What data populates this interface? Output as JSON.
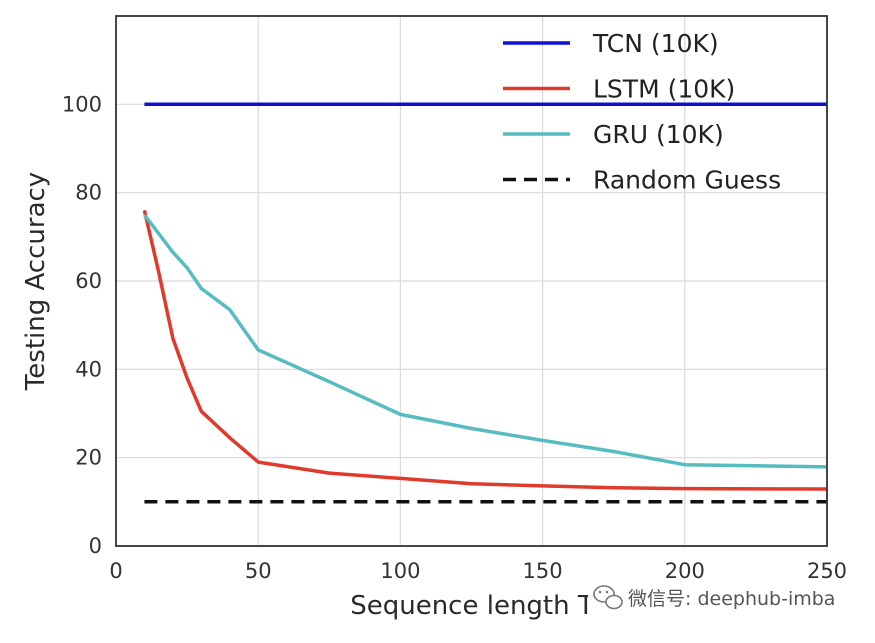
{
  "chart_data": {
    "type": "line",
    "title": "",
    "xlabel": "Sequence length T",
    "ylabel": "Testing Accuracy",
    "xlim": [
      0,
      250
    ],
    "ylim": [
      0,
      120
    ],
    "xticks": [
      0,
      50,
      100,
      150,
      200,
      250
    ],
    "yticks": [
      0,
      20,
      40,
      60,
      80,
      100
    ],
    "grid": true,
    "legend_position": "top-right",
    "series": [
      {
        "name": "TCN (10K)",
        "color": "#1010d0",
        "dash": "solid",
        "x": [
          10,
          250
        ],
        "y": [
          100,
          100
        ]
      },
      {
        "name": "LSTM (10K)",
        "color": "#e03a2c",
        "dash": "solid",
        "x": [
          10,
          15,
          20,
          25,
          30,
          40,
          50,
          75,
          100,
          125,
          150,
          175,
          200,
          250
        ],
        "y": [
          76,
          62,
          47,
          38,
          30.5,
          24.5,
          19,
          16.5,
          15.3,
          14.1,
          13.6,
          13.2,
          13,
          12.9
        ]
      },
      {
        "name": "GRU (10K)",
        "color": "#56bcc0",
        "dash": "solid",
        "x": [
          10,
          20,
          25,
          30,
          40,
          50,
          75,
          100,
          125,
          150,
          175,
          200,
          250
        ],
        "y": [
          75,
          66.5,
          63,
          58.3,
          53.5,
          44.4,
          37.2,
          29.8,
          26.6,
          23.9,
          21.4,
          18.4,
          17.9
        ]
      },
      {
        "name": "Random Guess",
        "color": "#111111",
        "dash": "dashed",
        "x": [
          10,
          250
        ],
        "y": [
          10,
          10
        ]
      }
    ]
  },
  "watermark": {
    "icon": "wechat-icon",
    "text": "微信号: deephub-imba"
  }
}
